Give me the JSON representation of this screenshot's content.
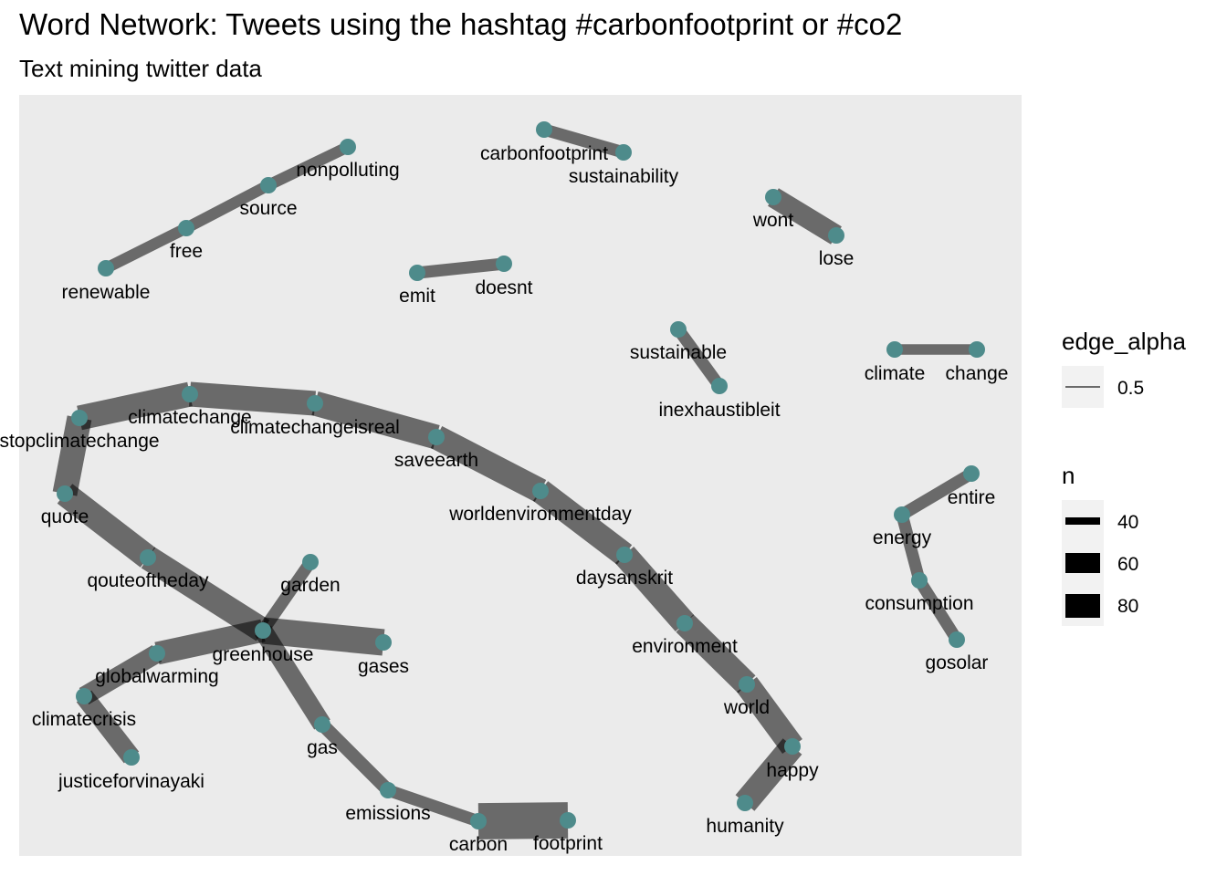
{
  "title": "Word Network: Tweets using the hashtag #carbonfootprint or #co2",
  "subtitle": "Text mining twitter data",
  "colors": {
    "panel": "#EBEBEB",
    "edge": "#000000",
    "node": "#4E8B8B",
    "legend_key_bg": "#F2F2F2"
  },
  "legend": {
    "edge_alpha": {
      "title": "edge_alpha",
      "value_label": "0.5"
    },
    "n": {
      "title": "n",
      "labels": [
        "40",
        "60",
        "80"
      ]
    }
  },
  "nodes": [
    {
      "id": "nonpolluting",
      "label": "nonpolluting"
    },
    {
      "id": "source",
      "label": "source"
    },
    {
      "id": "free",
      "label": "free"
    },
    {
      "id": "renewable",
      "label": "renewable"
    },
    {
      "id": "carbonfootprint",
      "label": "carbonfootprint"
    },
    {
      "id": "sustainability",
      "label": "sustainability"
    },
    {
      "id": "wont",
      "label": "wont"
    },
    {
      "id": "lose",
      "label": "lose"
    },
    {
      "id": "emit",
      "label": "emit"
    },
    {
      "id": "doesnt",
      "label": "doesnt"
    },
    {
      "id": "sustainable",
      "label": "sustainable"
    },
    {
      "id": "inexhaustibleit",
      "label": "inexhaustibleit"
    },
    {
      "id": "climate",
      "label": "climate"
    },
    {
      "id": "change",
      "label": "change"
    },
    {
      "id": "stopclimatechange",
      "label": "stopclimatechange"
    },
    {
      "id": "climatechange",
      "label": "climatechange"
    },
    {
      "id": "climatechangeisreal",
      "label": "climatechangeisreal"
    },
    {
      "id": "saveearth",
      "label": "saveearth"
    },
    {
      "id": "worldenvironmentday",
      "label": "worldenvironmentday"
    },
    {
      "id": "daysanskrit",
      "label": "daysanskrit"
    },
    {
      "id": "environment",
      "label": "environment"
    },
    {
      "id": "world",
      "label": "world"
    },
    {
      "id": "happy",
      "label": "happy"
    },
    {
      "id": "humanity",
      "label": "humanity"
    },
    {
      "id": "quote",
      "label": "quote"
    },
    {
      "id": "qouteoftheday",
      "label": "qouteoftheday"
    },
    {
      "id": "greenhouse",
      "label": "greenhouse"
    },
    {
      "id": "garden",
      "label": "garden"
    },
    {
      "id": "gases",
      "label": "gases"
    },
    {
      "id": "globalwarming",
      "label": "globalwarming"
    },
    {
      "id": "climatecrisis",
      "label": "climatecrisis"
    },
    {
      "id": "justiceforvinayaki",
      "label": "justiceforvinayaki"
    },
    {
      "id": "gas",
      "label": "gas"
    },
    {
      "id": "emissions",
      "label": "emissions"
    },
    {
      "id": "carbon",
      "label": "carbon"
    },
    {
      "id": "footprint",
      "label": "footprint"
    },
    {
      "id": "entire",
      "label": "entire"
    },
    {
      "id": "energy",
      "label": "energy"
    },
    {
      "id": "consumption",
      "label": "consumption"
    },
    {
      "id": "gosolar",
      "label": "gosolar"
    }
  ],
  "edges": [
    {
      "from": "nonpolluting",
      "to": "source",
      "n": 20
    },
    {
      "from": "source",
      "to": "free",
      "n": 20
    },
    {
      "from": "free",
      "to": "renewable",
      "n": 20
    },
    {
      "from": "carbonfootprint",
      "to": "sustainability",
      "n": 22
    },
    {
      "from": "wont",
      "to": "lose",
      "n": 45
    },
    {
      "from": "emit",
      "to": "doesnt",
      "n": 22
    },
    {
      "from": "sustainable",
      "to": "inexhaustibleit",
      "n": 22
    },
    {
      "from": "climate",
      "to": "change",
      "n": 18
    },
    {
      "from": "stopclimatechange",
      "to": "climatechange",
      "n": 55
    },
    {
      "from": "climatechange",
      "to": "climatechangeisreal",
      "n": 55
    },
    {
      "from": "climatechangeisreal",
      "to": "saveearth",
      "n": 55
    },
    {
      "from": "saveearth",
      "to": "worldenvironmentday",
      "n": 55
    },
    {
      "from": "worldenvironmentday",
      "to": "daysanskrit",
      "n": 55
    },
    {
      "from": "daysanskrit",
      "to": "environment",
      "n": 55
    },
    {
      "from": "environment",
      "to": "world",
      "n": 55
    },
    {
      "from": "world",
      "to": "happy",
      "n": 55
    },
    {
      "from": "happy",
      "to": "humanity",
      "n": 55
    },
    {
      "from": "stopclimatechange",
      "to": "quote",
      "n": 55
    },
    {
      "from": "quote",
      "to": "qouteoftheday",
      "n": 55
    },
    {
      "from": "qouteoftheday",
      "to": "greenhouse",
      "n": 55
    },
    {
      "from": "greenhouse",
      "to": "garden",
      "n": 22
    },
    {
      "from": "greenhouse",
      "to": "gases",
      "n": 60
    },
    {
      "from": "greenhouse",
      "to": "globalwarming",
      "n": 50
    },
    {
      "from": "globalwarming",
      "to": "climatecrisis",
      "n": 40
    },
    {
      "from": "climatecrisis",
      "to": "justiceforvinayaki",
      "n": 40
    },
    {
      "from": "greenhouse",
      "to": "gas",
      "n": 40
    },
    {
      "from": "gas",
      "to": "emissions",
      "n": 25
    },
    {
      "from": "emissions",
      "to": "carbon",
      "n": 22
    },
    {
      "from": "carbon",
      "to": "footprint",
      "n": 85
    },
    {
      "from": "entire",
      "to": "energy",
      "n": 22
    },
    {
      "from": "energy",
      "to": "consumption",
      "n": 22
    },
    {
      "from": "consumption",
      "to": "gosolar",
      "n": 22
    }
  ]
}
